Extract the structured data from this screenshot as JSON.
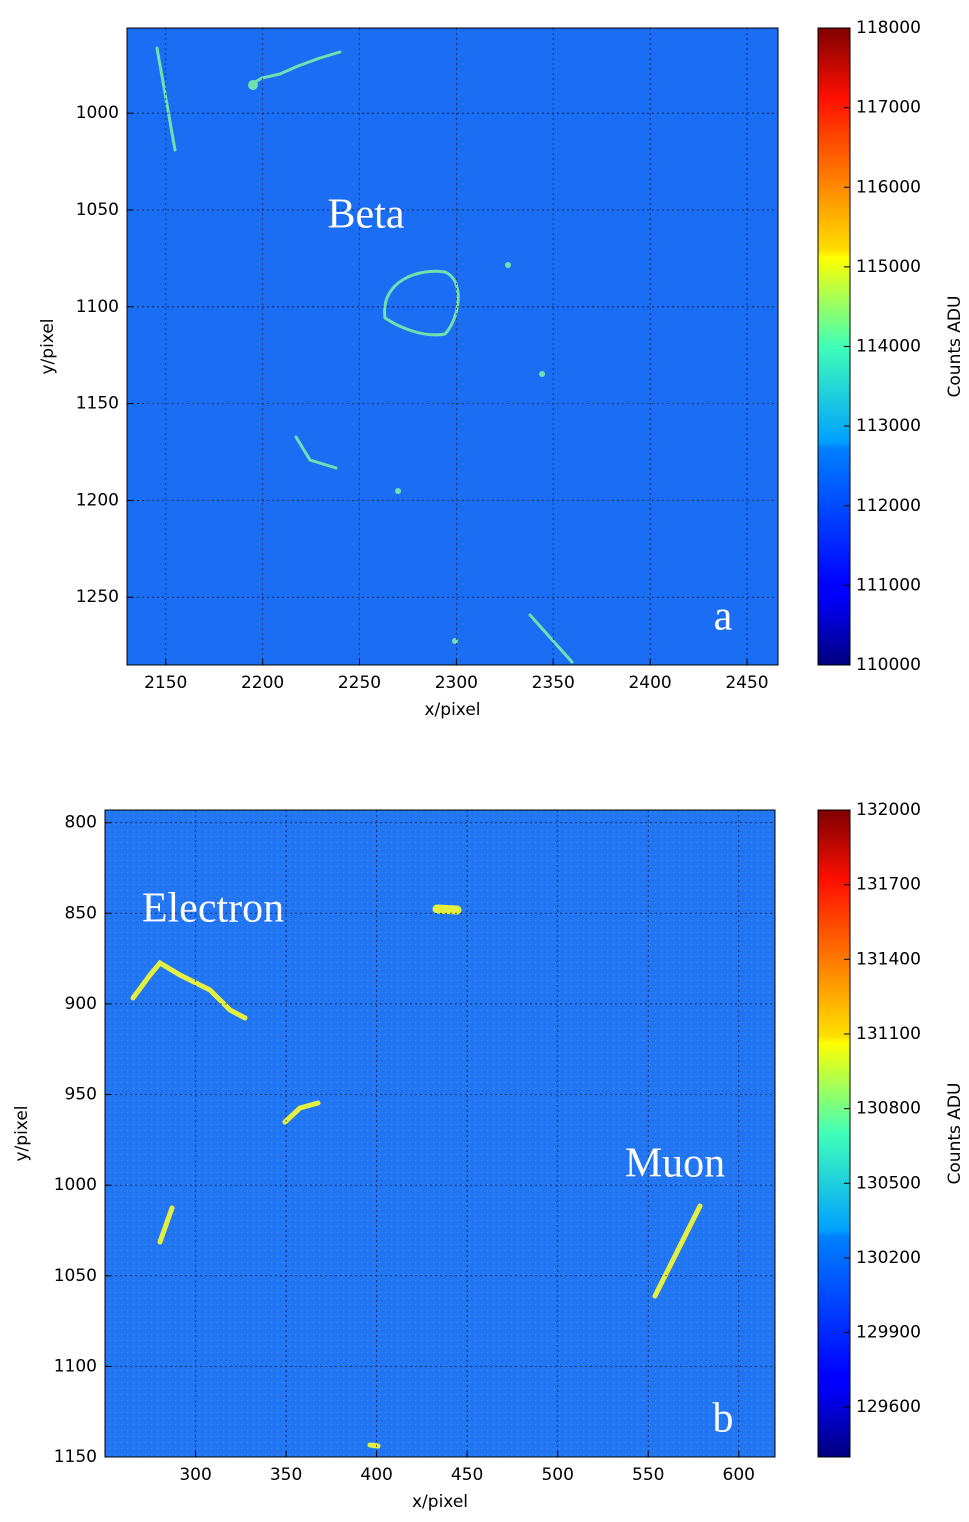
{
  "chart_data": [
    {
      "type": "image",
      "xlabel": "x/pixel",
      "ylabel": "y/pixel",
      "xlim": [
        2130,
        2466
      ],
      "ylim": [
        1285,
        956
      ],
      "xticks": [
        2150,
        2200,
        2250,
        2300,
        2350,
        2400,
        2450
      ],
      "yticks": [
        1000,
        1050,
        1100,
        1150,
        1200,
        1250
      ],
      "grid": true,
      "background": "#1b6ef3",
      "annotations": [
        "Beta",
        "a"
      ],
      "colorbar": {
        "label": "Counts ADU",
        "colormap": "jet",
        "lim": [
          110000,
          118000
        ],
        "ticks": [
          110000,
          111000,
          112000,
          113000,
          114000,
          115000,
          116000,
          117000,
          118000
        ]
      }
    },
    {
      "type": "image",
      "xlabel": "x/pixel",
      "ylabel": "y/pixel",
      "xlim": [
        250,
        620
      ],
      "ylim": [
        1150,
        793
      ],
      "xticks": [
        300,
        350,
        400,
        450,
        500,
        550,
        600
      ],
      "yticks": [
        800,
        850,
        900,
        950,
        1000,
        1050,
        1100,
        1150
      ],
      "grid": true,
      "background": "#2276f2",
      "annotations": [
        "Electron",
        "Muon",
        "b"
      ],
      "colorbar": {
        "label": "Counts ADU",
        "colormap": "jet",
        "lim": [
          129400,
          132000
        ],
        "ticks": [
          129600,
          129900,
          130200,
          130500,
          130800,
          131100,
          131400,
          131700,
          132000
        ]
      }
    }
  ]
}
